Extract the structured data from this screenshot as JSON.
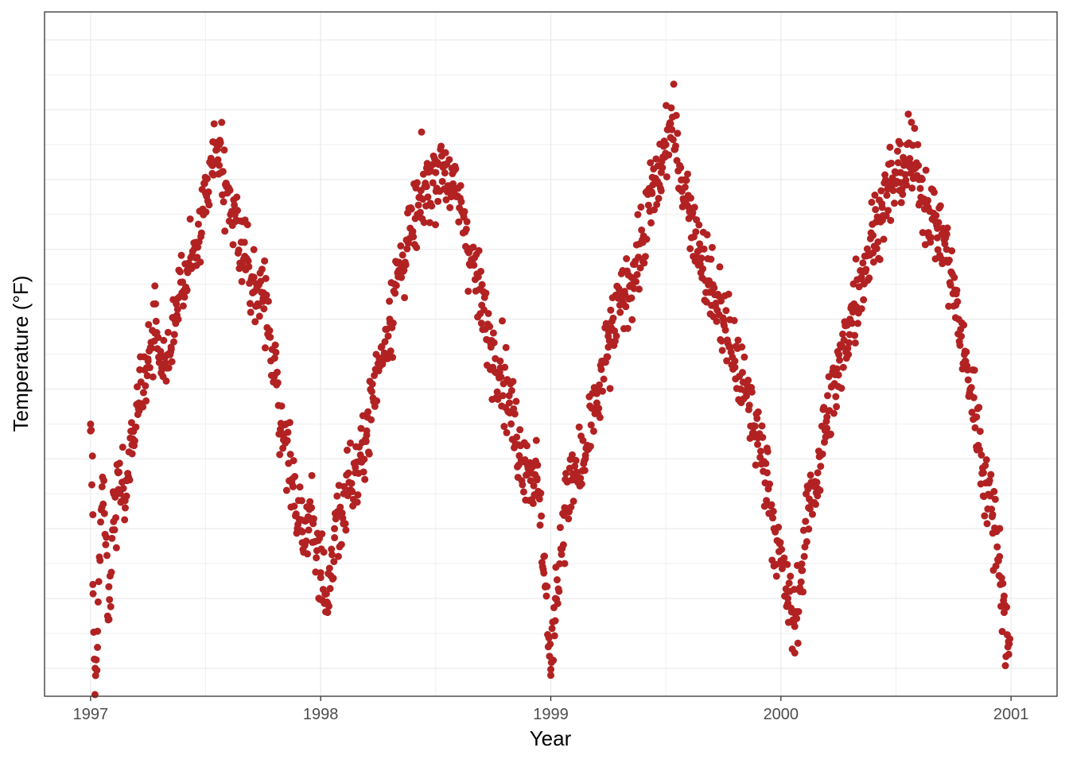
{
  "chart_data": {
    "type": "scatter",
    "title": "",
    "xlabel": "Year",
    "ylabel": "Temperature (°F)",
    "x_range": [
      1996.8,
      2001.2
    ],
    "y_range": [
      -12.0,
      37.0
    ],
    "x_ticks": [
      {
        "value": 1997,
        "label": "1997"
      },
      {
        "value": 1998,
        "label": "1998"
      },
      {
        "value": 1999,
        "label": "1999"
      },
      {
        "value": 2000,
        "label": "2000"
      },
      {
        "value": 2001,
        "label": "2001"
      }
    ],
    "y_tick_labels_shown": false,
    "grid": true,
    "point_color": "#B22222",
    "panel_border_color": "#333333",
    "grid_color": "#ebebeb",
    "sample_points": [
      [
        1997.0,
        7.0
      ],
      [
        1997.01,
        1.0
      ],
      [
        1997.01,
        -4.0
      ],
      [
        1997.02,
        -10.0
      ],
      [
        1997.03,
        -8.5
      ],
      [
        1997.05,
        3.0
      ],
      [
        1997.08,
        -6.5
      ],
      [
        1997.1,
        0.5
      ],
      [
        1997.12,
        4.0
      ],
      [
        1997.15,
        2.0
      ],
      [
        1997.18,
        6.0
      ],
      [
        1997.21,
        9.0
      ],
      [
        1997.25,
        12.0
      ],
      [
        1997.28,
        14.0
      ],
      [
        1997.31,
        11.5
      ],
      [
        1997.35,
        13.0
      ],
      [
        1997.38,
        16.5
      ],
      [
        1997.42,
        18.5
      ],
      [
        1997.46,
        20.5
      ],
      [
        1997.5,
        24.0
      ],
      [
        1997.53,
        26.0
      ],
      [
        1997.56,
        27.5
      ],
      [
        1997.59,
        24.5
      ],
      [
        1997.63,
        22.0
      ],
      [
        1997.67,
        19.5
      ],
      [
        1997.71,
        18.0
      ],
      [
        1997.75,
        16.5
      ],
      [
        1997.8,
        11.0
      ],
      [
        1997.84,
        6.5
      ],
      [
        1997.88,
        3.0
      ],
      [
        1997.92,
        -1.0
      ],
      [
        1997.96,
        1.5
      ],
      [
        1998.0,
        -3.5
      ],
      [
        1998.03,
        -6.0
      ],
      [
        1998.06,
        0.0
      ],
      [
        1998.1,
        2.5
      ],
      [
        1998.15,
        4.0
      ],
      [
        1998.2,
        7.0
      ],
      [
        1998.25,
        11.5
      ],
      [
        1998.3,
        15.0
      ],
      [
        1998.34,
        18.5
      ],
      [
        1998.38,
        20.5
      ],
      [
        1998.42,
        22.5
      ],
      [
        1998.46,
        24.5
      ],
      [
        1998.5,
        25.5
      ],
      [
        1998.54,
        26.0
      ],
      [
        1998.58,
        24.0
      ],
      [
        1998.62,
        22.5
      ],
      [
        1998.66,
        19.0
      ],
      [
        1998.7,
        16.0
      ],
      [
        1998.74,
        13.0
      ],
      [
        1998.78,
        12.0
      ],
      [
        1998.82,
        9.0
      ],
      [
        1998.86,
        6.0
      ],
      [
        1998.9,
        4.5
      ],
      [
        1998.94,
        3.5
      ],
      [
        1998.97,
        -2.0
      ],
      [
        1999.0,
        -10.5
      ],
      [
        1999.02,
        -5.0
      ],
      [
        1999.06,
        1.5
      ],
      [
        1999.1,
        3.5
      ],
      [
        1999.15,
        5.0
      ],
      [
        1999.2,
        9.0
      ],
      [
        1999.25,
        13.0
      ],
      [
        1999.3,
        16.0
      ],
      [
        1999.35,
        18.0
      ],
      [
        1999.4,
        20.5
      ],
      [
        1999.44,
        24.0
      ],
      [
        1999.48,
        25.5
      ],
      [
        1999.5,
        27.5
      ],
      [
        1999.52,
        29.0
      ],
      [
        1999.56,
        26.0
      ],
      [
        1999.6,
        23.0
      ],
      [
        1999.65,
        20.0
      ],
      [
        1999.7,
        17.0
      ],
      [
        1999.75,
        15.0
      ],
      [
        1999.8,
        12.0
      ],
      [
        1999.85,
        9.5
      ],
      [
        1999.9,
        6.5
      ],
      [
        1999.94,
        4.0
      ],
      [
        1999.97,
        0.0
      ],
      [
        2000.0,
        -2.5
      ],
      [
        2000.03,
        -5.0
      ],
      [
        2000.06,
        -7.0
      ],
      [
        2000.09,
        -3.0
      ],
      [
        2000.12,
        1.5
      ],
      [
        2000.16,
        4.0
      ],
      [
        2000.2,
        8.0
      ],
      [
        2000.25,
        11.0
      ],
      [
        2000.3,
        15.0
      ],
      [
        2000.35,
        18.0
      ],
      [
        2000.4,
        21.0
      ],
      [
        2000.44,
        23.0
      ],
      [
        2000.48,
        24.5
      ],
      [
        2000.52,
        25.5
      ],
      [
        2000.56,
        26.5
      ],
      [
        2000.6,
        25.0
      ],
      [
        2000.64,
        23.0
      ],
      [
        2000.68,
        21.5
      ],
      [
        2000.72,
        20.0
      ],
      [
        2000.76,
        16.0
      ],
      [
        2000.8,
        12.0
      ],
      [
        2000.85,
        8.0
      ],
      [
        2000.88,
        4.0
      ],
      [
        2000.92,
        1.0
      ],
      [
        2000.95,
        -2.0
      ],
      [
        2000.97,
        -6.0
      ],
      [
        2000.99,
        -9.0
      ]
    ]
  }
}
